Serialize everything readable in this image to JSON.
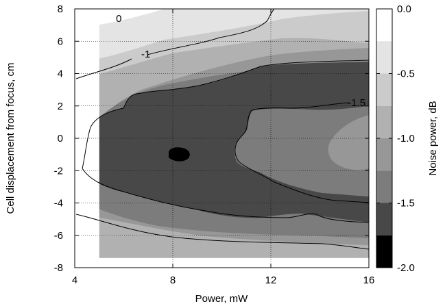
{
  "chart_data": {
    "type": "heatmap",
    "subtype": "filled-contour",
    "xlabel": "Power, mW",
    "ylabel": "Cell displacement from focus, cm",
    "colorbar_label": "Noise power, dB",
    "xlim": [
      4,
      16
    ],
    "ylim": [
      -8,
      8
    ],
    "data_x_range": [
      5,
      16
    ],
    "data_y_range": [
      -7.4,
      8
    ],
    "xticks": [
      4,
      8,
      12,
      16
    ],
    "yticks": [
      -8,
      -6,
      -4,
      -2,
      0,
      2,
      4,
      6,
      8
    ],
    "x_tick_labels": [
      "4",
      "8",
      "12",
      "16"
    ],
    "y_tick_labels": [
      "-8",
      "-6",
      "-4",
      "-2",
      "0",
      "2",
      "4",
      "6",
      "8"
    ],
    "grid": true,
    "colorbar": {
      "range": [
        -2.0,
        0.0
      ],
      "ticks": [
        0.0,
        -0.5,
        -1.0,
        -1.5,
        -2.0
      ],
      "tick_labels": [
        "0.0",
        "-0.5",
        "-1.0",
        "-1.5",
        "-2.0"
      ],
      "levels": [
        {
          "from": -0.25,
          "to": 0.0,
          "color": "#ffffff"
        },
        {
          "from": -0.5,
          "to": -0.25,
          "color": "#e4e4e4"
        },
        {
          "from": -0.75,
          "to": -0.5,
          "color": "#cbcbcb"
        },
        {
          "from": -1.0,
          "to": -0.75,
          "color": "#b1b1b1"
        },
        {
          "from": -1.25,
          "to": -1.0,
          "color": "#979797"
        },
        {
          "from": -1.5,
          "to": -1.25,
          "color": "#7c7c7c"
        },
        {
          "from": -1.75,
          "to": -1.5,
          "color": "#484848"
        },
        {
          "from": -2.0,
          "to": -1.75,
          "color": "#000000"
        }
      ]
    },
    "contour_lines": [
      {
        "level": 0,
        "label": "0",
        "label_at": [
          5.8,
          7.4
        ]
      },
      {
        "level": -1,
        "label": "-1",
        "label_at": [
          6.9,
          5.2
        ]
      },
      {
        "level": -1.5,
        "label": "-1.5",
        "label_at": [
          15.5,
          2.2
        ]
      }
    ],
    "minimum": {
      "x": 8.9,
      "y": -1.0,
      "value": -1.9
    }
  }
}
